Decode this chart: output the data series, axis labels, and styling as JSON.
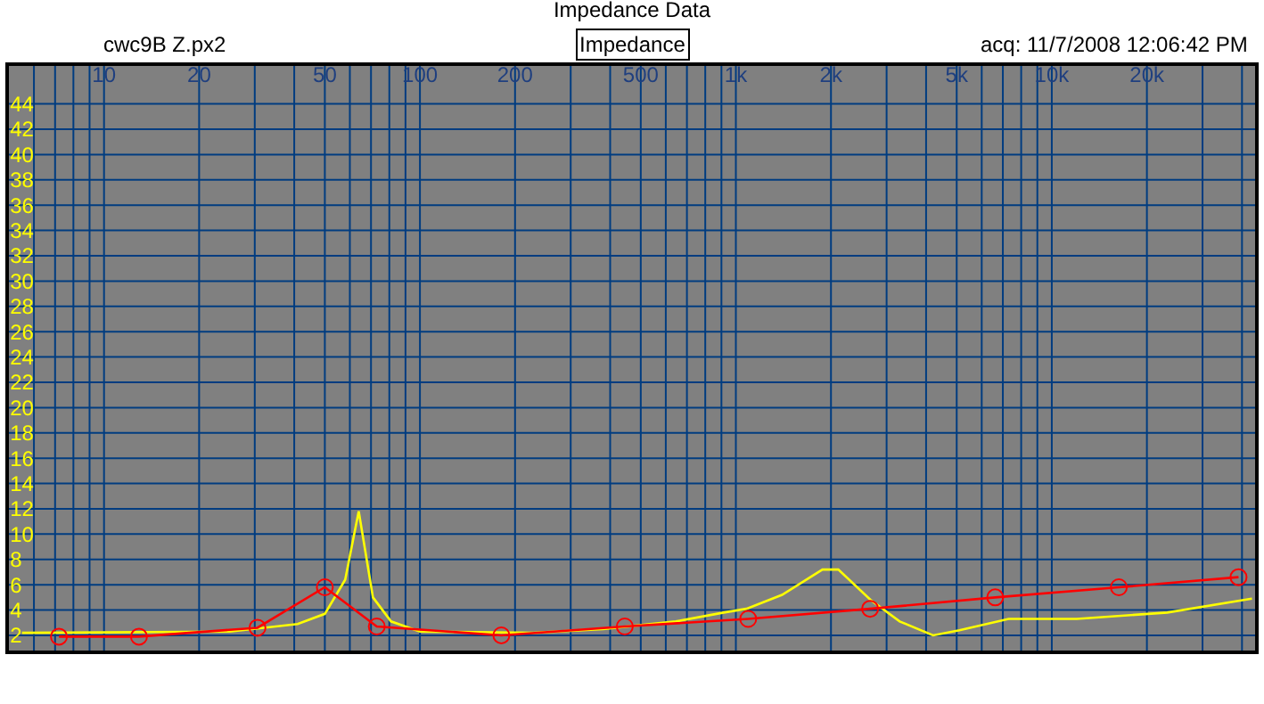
{
  "chart_data": {
    "type": "line",
    "title": "Impedance Data",
    "annotations": [
      "cwc9B Z.px2",
      "Impedance",
      "acq: 11/7/2008 12:06:42 PM"
    ],
    "log": "x",
    "grid": true,
    "line_style": "solid",
    "xlim": [
      5,
      44000
    ],
    "xticks": [
      {
        "value": 6,
        "label": null
      },
      {
        "value": 7,
        "label": null
      },
      {
        "value": 8,
        "label": null
      },
      {
        "value": 9,
        "label": null
      },
      10,
      20,
      {
        "value": 30,
        "label": null
      },
      {
        "value": 40,
        "label": null
      },
      50,
      {
        "value": 60,
        "label": null
      },
      {
        "value": 70,
        "label": null
      },
      {
        "value": 80,
        "label": null
      },
      {
        "value": 90,
        "label": null
      },
      100,
      200,
      {
        "value": 300,
        "label": null
      },
      {
        "value": 400,
        "label": null
      },
      500,
      {
        "value": 600,
        "label": null
      },
      {
        "value": 700,
        "label": null
      },
      {
        "value": 800,
        "label": null
      },
      {
        "value": 900,
        "label": null
      },
      {
        "value": 1000,
        "label": "1k"
      },
      {
        "value": 2000,
        "label": "2k"
      },
      {
        "value": 3000,
        "label": null
      },
      {
        "value": 4000,
        "label": null
      },
      {
        "value": 5000,
        "label": "5k"
      },
      {
        "value": 6000,
        "label": null
      },
      {
        "value": 7000,
        "label": null
      },
      {
        "value": 8000,
        "label": null
      },
      {
        "value": 9000,
        "label": null
      },
      {
        "value": 10000,
        "label": "10k"
      },
      {
        "value": 20000,
        "label": "20k"
      },
      {
        "value": 30000,
        "label": null
      },
      {
        "value": 40000,
        "label": null
      }
    ],
    "ylim": [
      0.8,
      47
    ],
    "yticks": [
      2,
      4,
      6,
      8,
      10,
      12,
      14,
      16,
      18,
      20,
      22,
      24,
      26,
      28,
      30,
      32,
      34,
      36,
      38,
      40,
      42,
      44
    ],
    "series": [
      {
        "color": "#ffff00",
        "marker": "none",
        "x": [
          5.5,
          25,
          41,
          50,
          58,
          64,
          71,
          81,
          100,
          229,
          380,
          645,
          915,
          1080,
          1400,
          1880,
          2110,
          2670,
          3300,
          4210,
          5100,
          7300,
          12000,
          23200,
          43000
        ],
        "values": [
          2.2,
          2.3,
          2.9,
          3.7,
          6.4,
          11.8,
          5.0,
          3.1,
          2.3,
          2.2,
          2.5,
          3.1,
          3.8,
          4.1,
          5.2,
          7.2,
          7.2,
          4.8,
          3.1,
          2.0,
          2.4,
          3.3,
          3.3,
          3.8,
          4.9
        ]
      },
      {
        "color": "#ff0000",
        "marker": "circle",
        "x": [
          7.2,
          12.9,
          30.6,
          50,
          73,
          181,
          445,
          1094,
          2660,
          6620,
          16300,
          39000
        ],
        "values": [
          1.9,
          1.9,
          2.6,
          5.8,
          2.7,
          2.0,
          2.7,
          3.3,
          4.1,
          5.0,
          5.8,
          6.6
        ]
      }
    ]
  }
}
